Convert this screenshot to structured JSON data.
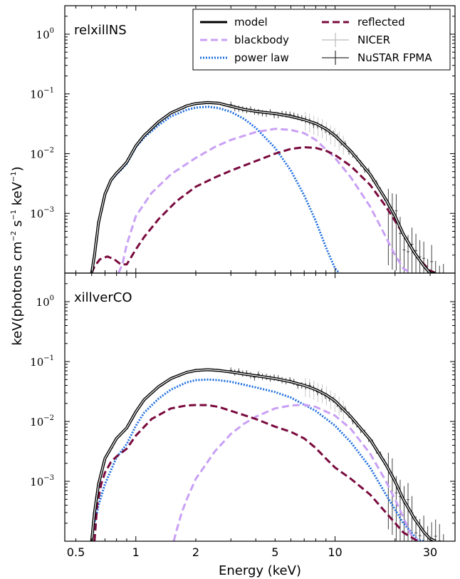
{
  "chart_data": {
    "type": "line",
    "xlabel": "Energy (keV)",
    "ylabel_prefix": "keV(photons cm",
    "ylabel_exp1": "−2",
    "ylabel_mid": " s",
    "ylabel_exp2": "−1",
    "ylabel_mid2": " keV",
    "ylabel_exp3": "−1",
    "ylabel_suffix": ")",
    "x_scale": "log",
    "y_scale": "log",
    "xlim": [
      0.44,
      40
    ],
    "ylim": [
      0.0001,
      3
    ],
    "x_ticks": [
      0.5,
      1,
      2,
      5,
      10,
      30
    ],
    "x_tick_labels": [
      "0.5",
      "1",
      "2",
      "5",
      "10",
      "30"
    ],
    "y_ticks": [
      0.001,
      0.01,
      0.1,
      1
    ],
    "y_tick_base": "10",
    "y_tick_exps": [
      "−3",
      "−2",
      "−1",
      "0"
    ],
    "legend": {
      "placement": "top-right",
      "entries": [
        {
          "label": "model",
          "color": "#000000",
          "style": "solid"
        },
        {
          "label": "blackbody",
          "color": "#c9a0f5",
          "style": "dashed"
        },
        {
          "label": "power law",
          "color": "#1f6fe0",
          "style": "dotted"
        },
        {
          "label": "reflected",
          "color": "#7a0a3e",
          "style": "dashed"
        },
        {
          "label": "NICER",
          "color": "#bbbbbb",
          "style": "errorbar"
        },
        {
          "label": "NuSTAR FPMA",
          "color": "#333333",
          "style": "errorbar"
        }
      ]
    },
    "panels": [
      {
        "label": "relxillNS",
        "series": [
          {
            "name": "power law",
            "color": "#1f6fe0",
            "x": [
              0.6,
              0.62,
              0.65,
              0.7,
              0.75,
              0.8,
              0.85,
              0.9,
              1.0,
              1.1,
              1.3,
              1.5,
              1.8,
              2.0,
              2.3,
              2.6,
              3.0,
              3.5,
              4.0,
              5.0,
              6.0,
              7.0,
              8.0,
              9.0,
              10.0,
              10.5
            ],
            "y": [
              0.0001,
              0.0002,
              0.0007,
              0.0021,
              0.0035,
              0.0045,
              0.0055,
              0.0068,
              0.0128,
              0.0185,
              0.03,
              0.042,
              0.054,
              0.059,
              0.061,
              0.058,
              0.05,
              0.038,
              0.027,
              0.0125,
              0.0052,
              0.002,
              0.00075,
              0.00027,
              0.00012,
              0.0001
            ]
          },
          {
            "name": "blackbody",
            "color": "#c9a0f5",
            "x": [
              0.82,
              0.86,
              0.9,
              1.0,
              1.2,
              1.5,
              2.0,
              2.5,
              3.0,
              4.0,
              5.0,
              6.0,
              7.0,
              8.0,
              10.0,
              12.0,
              15.0,
              18.0,
              20.0,
              22.0,
              24.0
            ],
            "y": [
              0.0001,
              0.00015,
              0.0003,
              0.0009,
              0.0022,
              0.0045,
              0.0085,
              0.013,
              0.017,
              0.023,
              0.026,
              0.025,
              0.022,
              0.017,
              0.0085,
              0.004,
              0.0013,
              0.0004,
              0.0002,
              0.00012,
              0.0001
            ]
          },
          {
            "name": "reflected",
            "color": "#7a0a3e",
            "x": [
              0.6,
              0.62,
              0.66,
              0.72,
              0.78,
              0.84,
              0.9,
              1.0,
              1.1,
              1.3,
              1.6,
              2.0,
              2.5,
              3.0,
              4.0,
              5.0,
              6.0,
              7.0,
              8.0,
              9.0,
              10.0,
              12.0,
              15.0,
              18.0,
              22.0,
              26.0,
              30.0,
              32.0
            ],
            "y": [
              0.0001,
              0.00013,
              0.00017,
              0.00019,
              0.00017,
              0.00014,
              0.00014,
              0.00025,
              0.0004,
              0.0008,
              0.0016,
              0.0028,
              0.004,
              0.0052,
              0.0075,
              0.01,
              0.012,
              0.0128,
              0.0125,
              0.0112,
              0.0095,
              0.0062,
              0.003,
              0.0013,
              0.00045,
              0.00018,
              0.00011,
              0.0001
            ]
          },
          {
            "name": "model",
            "color": "#000000",
            "x": [
              0.6,
              0.62,
              0.65,
              0.7,
              0.75,
              0.8,
              0.85,
              0.9,
              1.0,
              1.1,
              1.3,
              1.5,
              1.8,
              2.0,
              2.3,
              2.6,
              3.0,
              3.5,
              4.0,
              5.0,
              6.0,
              7.0,
              8.0,
              9.0,
              10.0,
              12.0,
              15.0,
              18.0,
              20.0,
              22.0,
              25.0,
              28.0,
              30.0,
              32.0
            ],
            "y": [
              0.0001,
              0.0002,
              0.0007,
              0.0021,
              0.0036,
              0.0047,
              0.0058,
              0.0072,
              0.0135,
              0.02,
              0.034,
              0.048,
              0.063,
              0.069,
              0.072,
              0.07,
              0.062,
              0.055,
              0.051,
              0.047,
              0.042,
              0.037,
              0.032,
              0.026,
              0.02,
              0.011,
              0.0045,
              0.0017,
              0.0009,
              0.00045,
              0.00022,
              0.00013,
              0.0001,
              0.0001
            ]
          }
        ]
      },
      {
        "label": "xillverCO",
        "series": [
          {
            "name": "power law",
            "color": "#1f6fe0",
            "x": [
              0.6,
              0.62,
              0.65,
              0.7,
              0.8,
              0.9,
              1.0,
              1.1,
              1.3,
              1.5,
              1.8,
              2.0,
              2.3,
              2.6,
              3.0,
              3.5,
              4.0,
              5.0,
              6.0,
              8.0,
              10.0,
              12.0,
              15.0,
              18.0,
              22.0,
              26.0,
              28.0
            ],
            "y": [
              0.0001,
              0.0002,
              0.0004,
              0.0009,
              0.0025,
              0.0042,
              0.0085,
              0.014,
              0.024,
              0.034,
              0.045,
              0.049,
              0.05,
              0.049,
              0.046,
              0.041,
              0.037,
              0.031,
              0.025,
              0.015,
              0.0085,
              0.0045,
              0.0017,
              0.0006,
              0.0002,
              0.000105,
              0.0001
            ]
          },
          {
            "name": "blackbody",
            "color": "#c9a0f5",
            "x": [
              1.55,
              1.6,
              1.7,
              1.8,
              2.0,
              2.5,
              3.0,
              3.5,
              4.0,
              5.0,
              6.0,
              7.0,
              8.0,
              10.0,
              12.0,
              15.0,
              18.0,
              20.0,
              22.0,
              24.0,
              26.0
            ],
            "y": [
              0.0001,
              0.00015,
              0.0003,
              0.0005,
              0.0011,
              0.0032,
              0.0062,
              0.0092,
              0.012,
              0.0165,
              0.0185,
              0.019,
              0.0175,
              0.0125,
              0.0075,
              0.0029,
              0.001,
              0.0005,
              0.00025,
              0.00013,
              0.0001
            ]
          },
          {
            "name": "reflected",
            "color": "#7a0a3e",
            "x": [
              0.62,
              0.64,
              0.67,
              0.7,
              0.75,
              0.8,
              0.9,
              1.0,
              1.2,
              1.5,
              1.8,
              2.0,
              2.3,
              2.6,
              3.0,
              4.0,
              5.0,
              6.0,
              7.0,
              8.0,
              9.0,
              10.0,
              12.0,
              15.0,
              18.0,
              22.0,
              26.0
            ],
            "y": [
              0.0001,
              0.0004,
              0.0009,
              0.0014,
              0.0021,
              0.0026,
              0.0035,
              0.0058,
              0.011,
              0.0165,
              0.0185,
              0.0188,
              0.0187,
              0.0175,
              0.015,
              0.011,
              0.0082,
              0.0067,
              0.0052,
              0.0036,
              0.0024,
              0.0017,
              0.0011,
              0.0006,
              0.0003,
              0.00014,
              0.0001
            ]
          },
          {
            "name": "model",
            "color": "#000000",
            "x": [
              0.6,
              0.62,
              0.65,
              0.7,
              0.8,
              0.9,
              1.0,
              1.1,
              1.3,
              1.5,
              1.8,
              2.0,
              2.3,
              2.6,
              3.0,
              3.5,
              4.0,
              5.0,
              6.0,
              7.0,
              8.0,
              9.0,
              10.0,
              12.0,
              15.0,
              18.0,
              20.0,
              22.0,
              25.0,
              28.0,
              30.0,
              32.0
            ],
            "y": [
              0.0001,
              0.0003,
              0.0009,
              0.0024,
              0.0052,
              0.0078,
              0.0145,
              0.023,
              0.038,
              0.052,
              0.066,
              0.071,
              0.073,
              0.071,
              0.067,
              0.062,
              0.058,
              0.052,
              0.046,
              0.04,
              0.034,
              0.028,
              0.022,
              0.012,
              0.005,
              0.0019,
              0.001,
              0.0005,
              0.00024,
              0.00014,
              0.00011,
              0.0001
            ]
          }
        ]
      }
    ]
  }
}
